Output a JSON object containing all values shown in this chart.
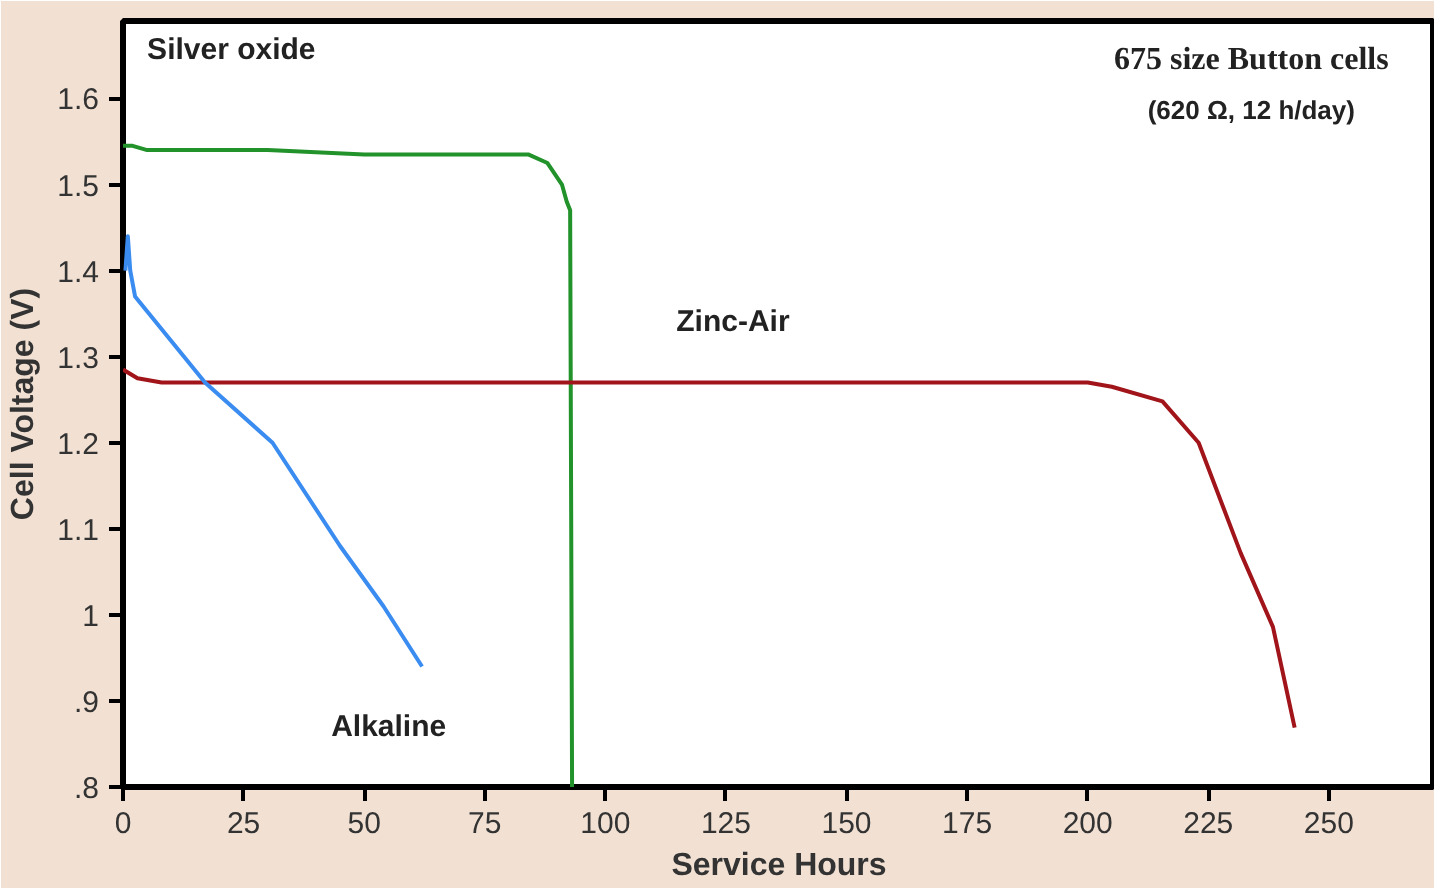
{
  "chart_data": {
    "type": "line",
    "title": "675 size Button cells",
    "subtitle": "(620 Ω, 12 h/day)",
    "xlabel": "Service Hours",
    "ylabel": "Cell Voltage (V)",
    "xlim": [
      0,
      272
    ],
    "xticks": [
      0,
      25,
      50,
      75,
      100,
      125,
      150,
      175,
      200,
      225,
      250
    ],
    "ylim": [
      0.8,
      1.69
    ],
    "yticks": [
      {
        "value": 0.8,
        "label": ".8"
      },
      {
        "value": 0.9,
        "label": ".9"
      },
      1,
      1.1,
      1.2,
      1.3,
      1.4,
      1.5,
      1.6
    ],
    "grid": false,
    "legend": false,
    "marker": "none",
    "line_style": "solid",
    "series": [
      {
        "name": "Silver oxide",
        "color": "#22922a",
        "x": [
          0,
          2,
          5,
          30,
          50,
          84,
          88,
          91,
          92,
          92.7,
          92.9,
          93.1
        ],
        "values": [
          1.545,
          1.545,
          1.54,
          1.54,
          1.535,
          1.535,
          1.525,
          1.5,
          1.48,
          1.47,
          1.14,
          0.8
        ]
      },
      {
        "name": "Zinc-Air",
        "color": "#a0141a",
        "x": [
          0,
          3,
          8,
          100,
          200,
          205,
          215.5,
          223,
          231.7,
          238.4,
          242.9
        ],
        "values": [
          1.285,
          1.275,
          1.27,
          1.27,
          1.27,
          1.265,
          1.248,
          1.2,
          1.072,
          0.986,
          0.869
        ]
      },
      {
        "name": "Alkaline",
        "color": "#3a8cf0",
        "x": [
          0.5,
          1,
          1.5,
          2.5,
          17,
          31,
          45,
          54,
          62
        ],
        "values": [
          1.4,
          1.44,
          1.4,
          1.37,
          1.27,
          1.2,
          1.08,
          1.01,
          0.94
        ]
      }
    ]
  }
}
